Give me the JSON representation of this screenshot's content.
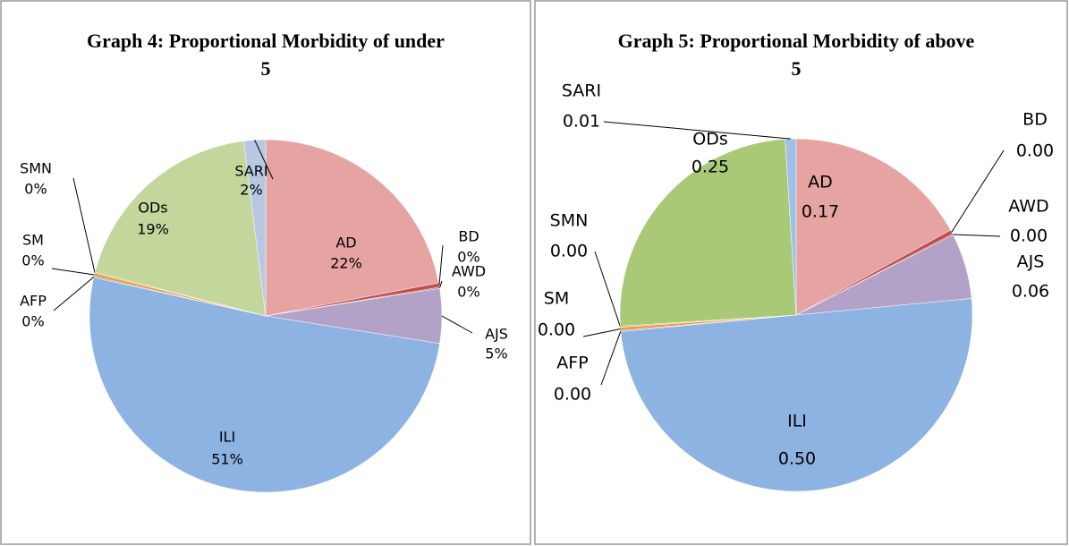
{
  "chart_data": [
    {
      "type": "pie",
      "title": "Graph 4: Proportional Morbidity of under 5",
      "categories": [
        "AD",
        "BD",
        "AWD",
        "AJS",
        "ILI",
        "AFP",
        "SM",
        "SMN",
        "ODs",
        "SARI"
      ],
      "values": [
        22,
        0.4,
        0.1,
        5,
        51,
        0.1,
        0.3,
        0.1,
        19,
        2
      ],
      "value_labels": [
        "22%",
        "0%",
        "0%",
        "5%",
        "51%",
        "0%",
        "0%",
        "0%",
        "19%",
        "2%"
      ],
      "colors": [
        "#e5a3a2",
        "#c0504d",
        "#c0504d",
        "#b3a2c7",
        "#8db3e2",
        "#4bacc6",
        "#f79646",
        "#9bbb59",
        "#c3d69b",
        "#b9c8e2"
      ]
    },
    {
      "type": "pie",
      "title": "Graph 5: Proportional Morbidity of above 5",
      "categories": [
        "AD",
        "BD",
        "AWD",
        "AJS",
        "ILI",
        "AFP",
        "SM",
        "SMN",
        "ODs",
        "SARI"
      ],
      "values": [
        0.17,
        0.004,
        0.001,
        0.06,
        0.5,
        0.001,
        0.003,
        0.001,
        0.25,
        0.01
      ],
      "value_labels": [
        "0.17",
        "0.00",
        "0.00",
        "0.06",
        "0.50",
        "0.00",
        "0.00",
        "0.00",
        "0.25",
        "0.01"
      ],
      "colors": [
        "#e5a3a2",
        "#c0504d",
        "#c0504d",
        "#b3a2c7",
        "#8db3e2",
        "#4bacc6",
        "#f79646",
        "#9bbb59",
        "#a9c977",
        "#9fc1e8"
      ]
    }
  ]
}
